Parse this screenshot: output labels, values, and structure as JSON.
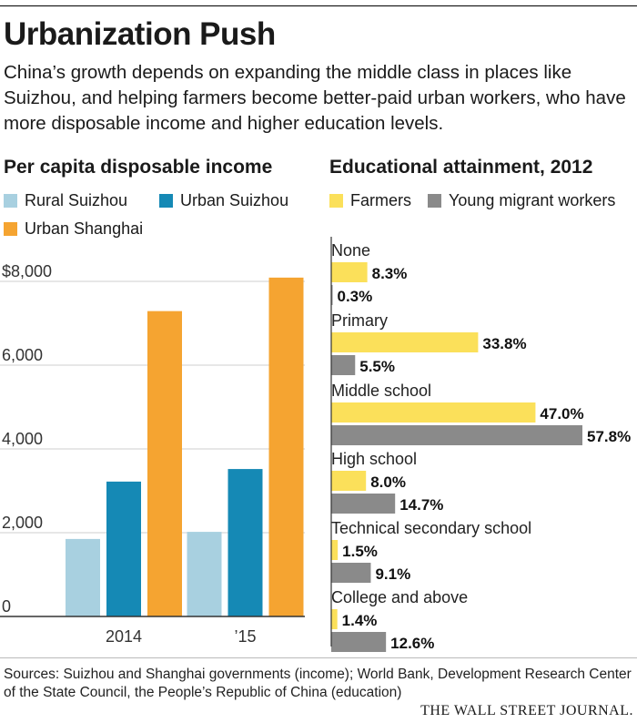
{
  "header": {
    "title": "Urbanization Push",
    "subtitle": "China’s growth depends on expanding the middle class in places like Suizhou, and helping farmers become better-paid urban workers, who have more disposable income and higher education levels."
  },
  "footer": {
    "sources": "Sources: Suizhou and Shanghai governments (income); World Bank, Development Research Center of the State Council, the People’s Republic of China (education)",
    "brand": "THE WALL STREET JOURNAL."
  },
  "chart_data": [
    {
      "type": "bar",
      "title": "Per capita disposable income",
      "categories": [
        "2014",
        "’15"
      ],
      "series": [
        {
          "name": "Rural Suizhou",
          "color": "#a8d0e0",
          "values": [
            1850,
            2020
          ]
        },
        {
          "name": "Urban Suizhou",
          "color": "#1589b5",
          "values": [
            3220,
            3520
          ]
        },
        {
          "name": "Urban Shanghai",
          "color": "#f5a431",
          "values": [
            7290,
            8090
          ]
        }
      ],
      "yticks": [
        0,
        2000,
        4000,
        6000,
        8000
      ],
      "ytick_labels": [
        "0",
        "2,000",
        "4,000",
        "6,000",
        "$8,000"
      ],
      "ylim": [
        0,
        8000
      ],
      "legend_placement": "top-left"
    },
    {
      "type": "bar",
      "orientation": "horizontal",
      "title": "Educational attainment, 2012",
      "categories": [
        "None",
        "Primary",
        "Middle school",
        "High school",
        "Technical secondary school",
        "College and above"
      ],
      "series": [
        {
          "name": "Farmers",
          "color": "#fbe05a",
          "values": [
            8.3,
            33.8,
            47.0,
            8.0,
            1.5,
            1.4
          ],
          "labels": [
            "8.3%",
            "33.8%",
            "47.0%",
            "8.0%",
            "1.5%",
            "1.4%"
          ]
        },
        {
          "name": "Young migrant workers",
          "color": "#8a8a8a",
          "values": [
            0.3,
            5.5,
            57.8,
            14.7,
            9.1,
            12.6
          ],
          "labels": [
            "0.3%",
            "5.5%",
            "57.8%",
            "14.7%",
            "9.1%",
            "12.6%"
          ]
        }
      ],
      "xlim": [
        0,
        57.8
      ],
      "legend_placement": "top-left"
    }
  ]
}
